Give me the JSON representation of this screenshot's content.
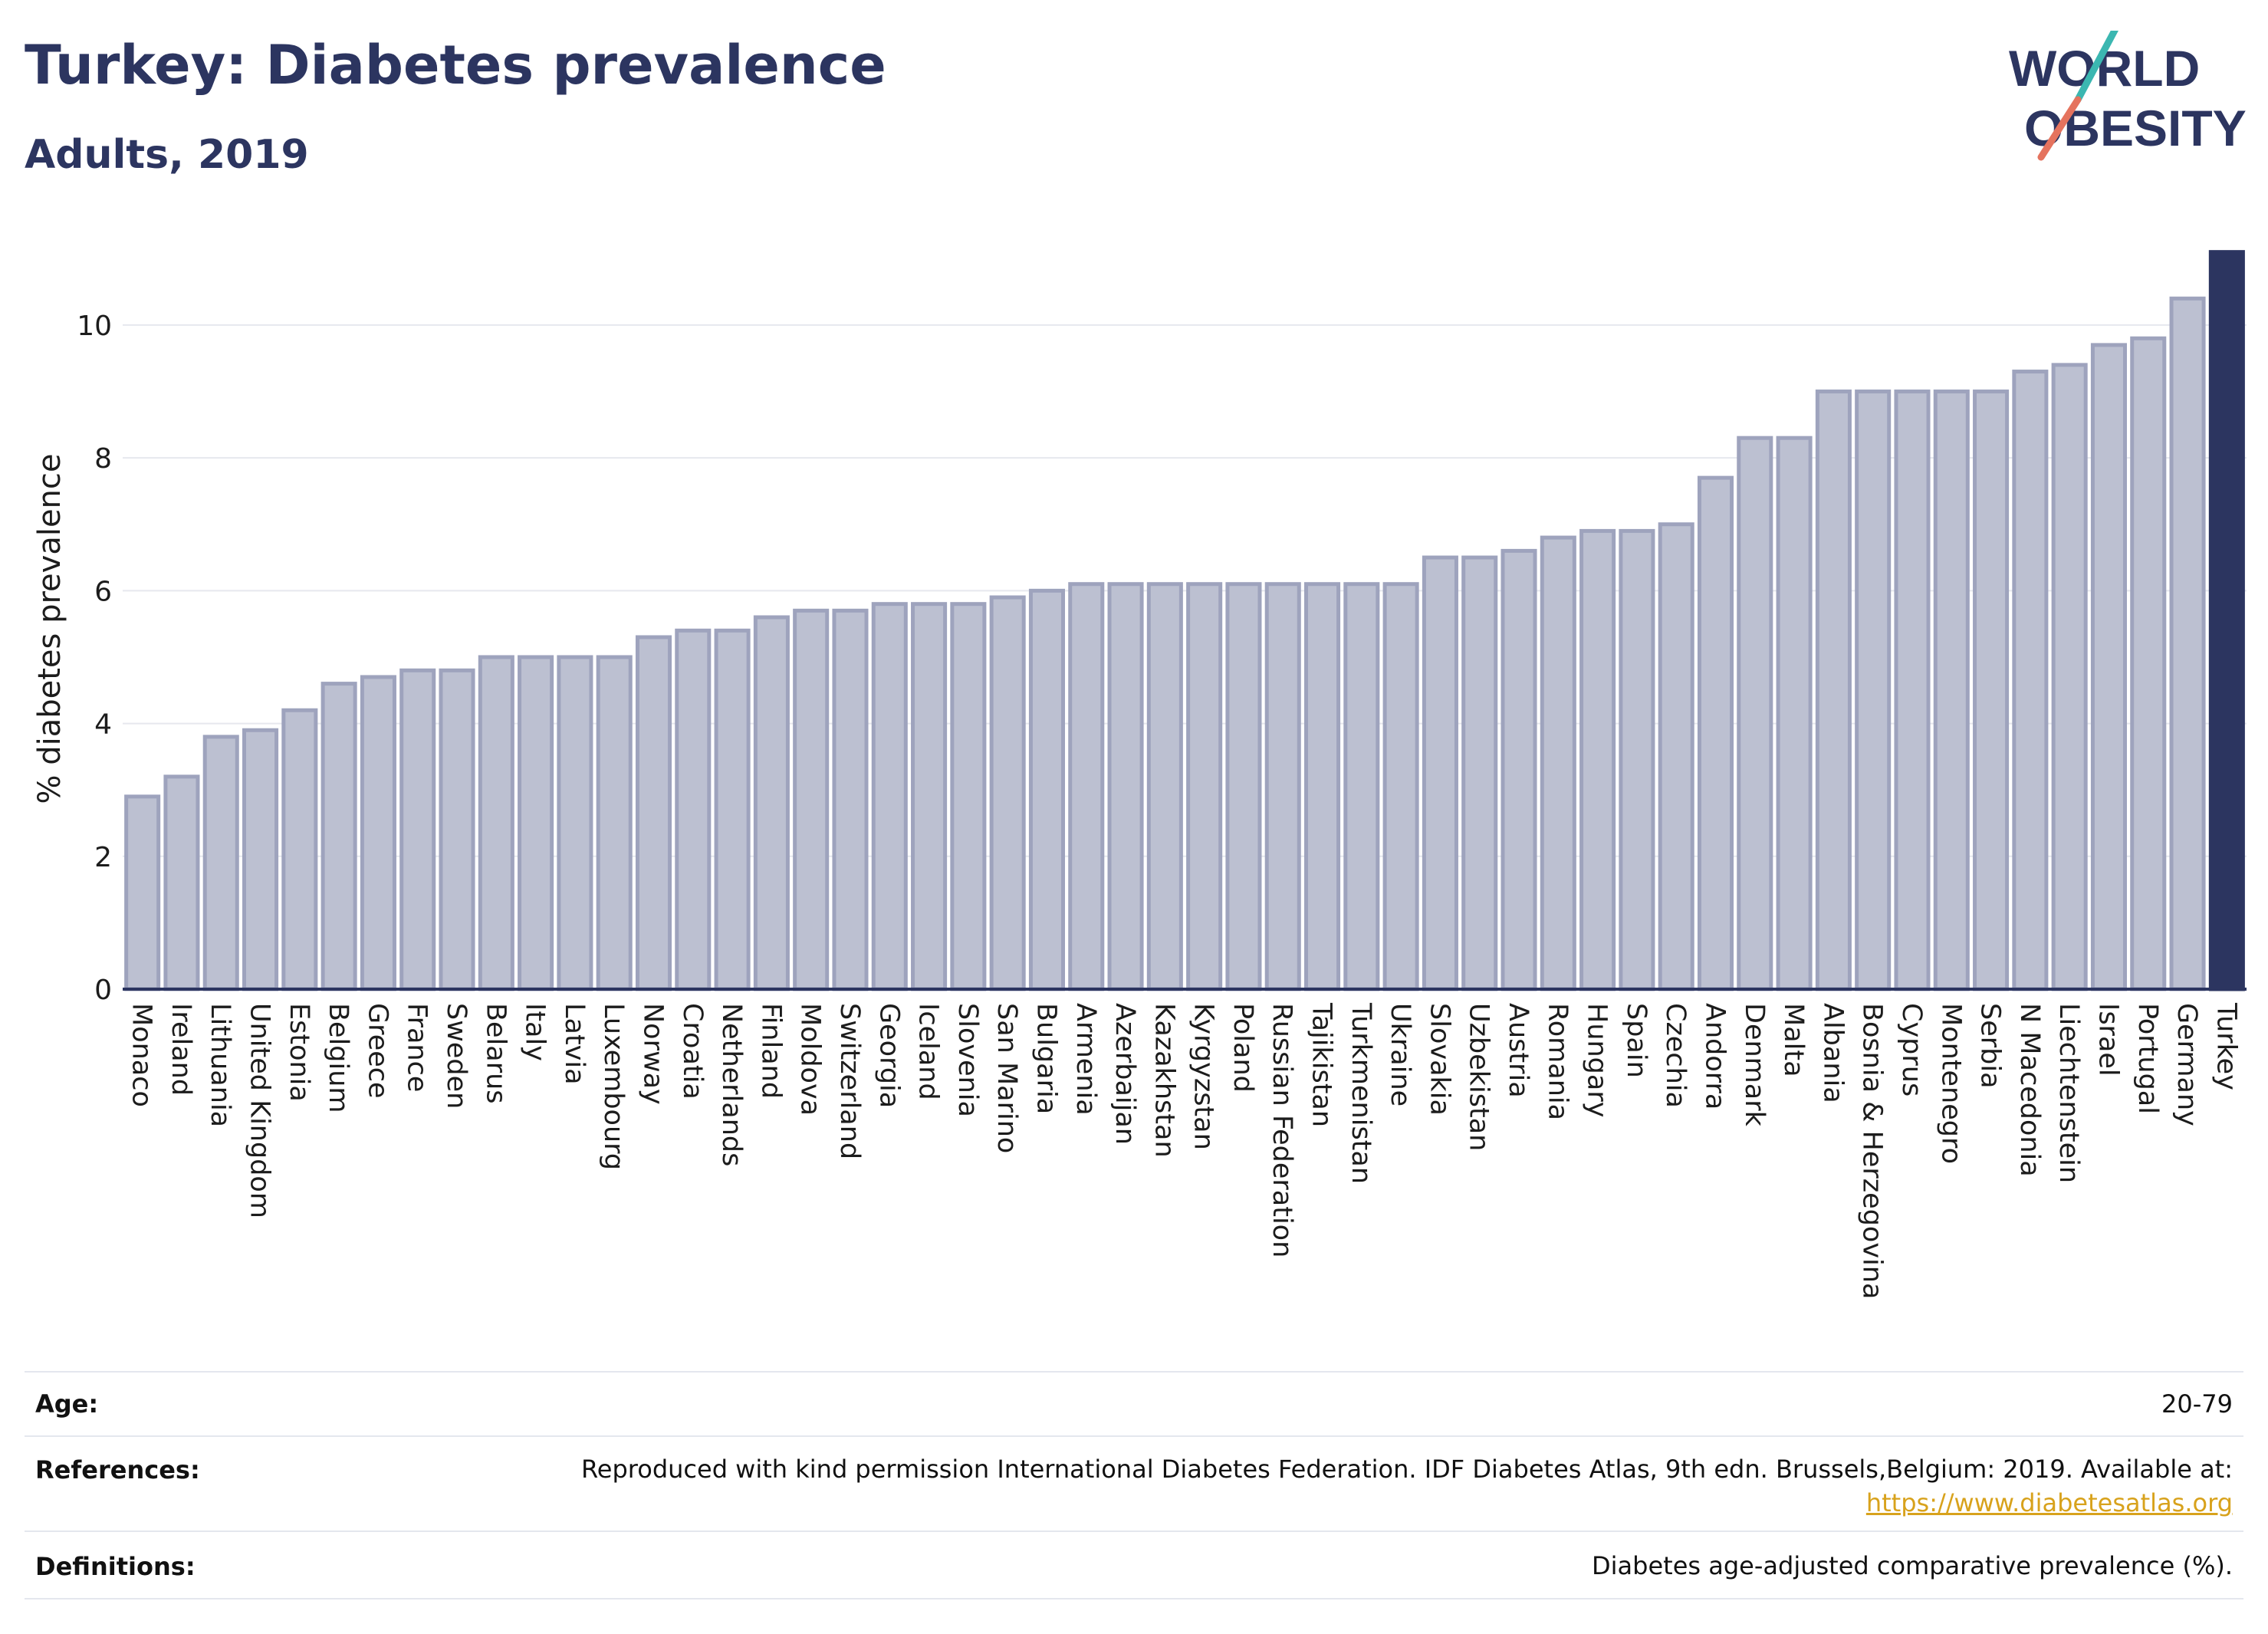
{
  "header": {
    "title": "Turkey: Diabetes prevalence",
    "subtitle": "Adults, 2019",
    "logo_line1": "WORLD",
    "logo_line2": "OBESITY"
  },
  "colors": {
    "navy": "#2c3560",
    "bar_fill": "#bcc0d1",
    "bar_stroke": "#9ea3bd",
    "highlight": "#2c3560",
    "logo_teal": "#3bb7b1",
    "logo_coral": "#e5735e",
    "link": "#d8a21c"
  },
  "chart_data": {
    "type": "bar",
    "ylabel": "% diabetes prevalence",
    "xlabel": "",
    "ylim": [
      0,
      11.2
    ],
    "yticks": [
      0,
      2,
      4,
      6,
      8,
      10
    ],
    "grid": true,
    "highlight": "Turkey",
    "categories": [
      "Monaco",
      "Ireland",
      "Lithuania",
      "United Kingdom",
      "Estonia",
      "Belgium",
      "Greece",
      "France",
      "Sweden",
      "Belarus",
      "Italy",
      "Latvia",
      "Luxembourg",
      "Norway",
      "Croatia",
      "Netherlands",
      "Finland",
      "Moldova",
      "Switzerland",
      "Georgia",
      "Iceland",
      "Slovenia",
      "San Marino",
      "Bulgaria",
      "Armenia",
      "Azerbaijan",
      "Kazakhstan",
      "Kyrgyzstan",
      "Poland",
      "Russian Federation",
      "Tajikistan",
      "Turkmenistan",
      "Ukraine",
      "Slovakia",
      "Uzbekistan",
      "Austria",
      "Romania",
      "Hungary",
      "Spain",
      "Czechia",
      "Andorra",
      "Denmark",
      "Malta",
      "Albania",
      "Bosnia & Herzegovina",
      "Cyprus",
      "Montenegro",
      "Serbia",
      "N Macedonia",
      "Liechtenstein",
      "Israel",
      "Portugal",
      "Germany",
      "Turkey"
    ],
    "values": [
      2.9,
      3.2,
      3.8,
      3.9,
      4.2,
      4.6,
      4.7,
      4.8,
      4.8,
      5.0,
      5.0,
      5.0,
      5.0,
      5.3,
      5.4,
      5.4,
      5.6,
      5.7,
      5.7,
      5.8,
      5.8,
      5.8,
      5.9,
      6.0,
      6.1,
      6.1,
      6.1,
      6.1,
      6.1,
      6.1,
      6.1,
      6.1,
      6.1,
      6.5,
      6.5,
      6.6,
      6.8,
      6.9,
      6.9,
      7.0,
      7.7,
      8.3,
      8.3,
      9.0,
      9.0,
      9.0,
      9.0,
      9.0,
      9.3,
      9.4,
      9.7,
      9.8,
      10.4,
      11.1
    ]
  },
  "info": {
    "age_label": "Age:",
    "age_value": "20-79",
    "references_label": "References:",
    "references_text": "Reproduced with kind permission International Diabetes Federation. IDF Diabetes Atlas, 9th edn. Brussels,Belgium: 2019. Available at:",
    "references_link": "https://www.diabetesatlas.org",
    "definitions_label": "Definitions:",
    "definitions_value": "Diabetes age-adjusted comparative prevalence (%)."
  }
}
